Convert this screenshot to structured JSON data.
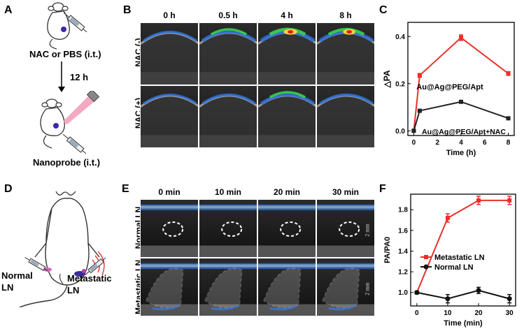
{
  "panels": {
    "A": {
      "label": "A",
      "step1": "NAC or PBS (i.t.)",
      "interval": "12 h",
      "step2": "Nanoprobe (i.t.)"
    },
    "B": {
      "label": "B",
      "times": [
        "0 h",
        "0.5 h",
        "4 h",
        "8 h"
      ],
      "rows": [
        "NAC (-)",
        "NAC (+)"
      ]
    },
    "C": {
      "label": "C"
    },
    "D": {
      "label": "D",
      "left": "Normal LN",
      "right": "Metastatic LN"
    },
    "E": {
      "label": "E",
      "times": [
        "0 min",
        "10 min",
        "20 min",
        "30 min"
      ],
      "rows": [
        "Normal LN",
        "Metastatic LN"
      ],
      "scale": "2 mm"
    },
    "F": {
      "label": "F"
    }
  },
  "chart_data": [
    {
      "type": "line",
      "panel": "C",
      "xlabel": "Time (h)",
      "ylabel": "△PA",
      "xlim": [
        -0.5,
        8.5
      ],
      "ylim": [
        -0.02,
        0.46
      ],
      "xticks": [
        0,
        2,
        4,
        6,
        8
      ],
      "yticks": [
        0.0,
        0.2,
        0.4
      ],
      "ytick_labels": [
        "0.0",
        "0.2",
        "0.4"
      ],
      "series": [
        {
          "name": "Au@Ag@PEG/Apt",
          "color": "#e8302a",
          "x": [
            0,
            0.5,
            4,
            8
          ],
          "y": [
            0.0,
            0.235,
            0.395,
            0.243
          ],
          "err": [
            0.005,
            0.008,
            0.012,
            0.008
          ]
        },
        {
          "name": "Au@Ag@PEG/Apt+NAC",
          "color": "#222222",
          "x": [
            0,
            0.5,
            4,
            8
          ],
          "y": [
            0.0,
            0.085,
            0.123,
            0.053
          ],
          "err": [
            0.004,
            0.005,
            0.005,
            0.004
          ]
        }
      ]
    },
    {
      "type": "line",
      "panel": "F",
      "xlabel": "Time (min)",
      "ylabel": "PA/PA0",
      "xlim": [
        -2,
        32
      ],
      "ylim": [
        0.87,
        1.95
      ],
      "xticks": [
        0,
        10,
        20,
        30
      ],
      "yticks": [
        1.0,
        1.2,
        1.4,
        1.6,
        1.8
      ],
      "ytick_labels": [
        "1.0",
        "1.2",
        "1.4",
        "1.6",
        "1.8"
      ],
      "legend": "center-left",
      "series": [
        {
          "name": "Metastatic LN",
          "color": "#e8302a",
          "x": [
            0,
            10,
            20,
            30
          ],
          "y": [
            1.0,
            1.72,
            1.89,
            1.89
          ],
          "err": [
            0.01,
            0.04,
            0.04,
            0.04
          ]
        },
        {
          "name": "Normal LN",
          "color": "#111111",
          "x": [
            0,
            10,
            20,
            30
          ],
          "y": [
            1.0,
            0.94,
            1.02,
            0.94
          ],
          "err": [
            0.01,
            0.04,
            0.03,
            0.04
          ]
        }
      ]
    }
  ]
}
